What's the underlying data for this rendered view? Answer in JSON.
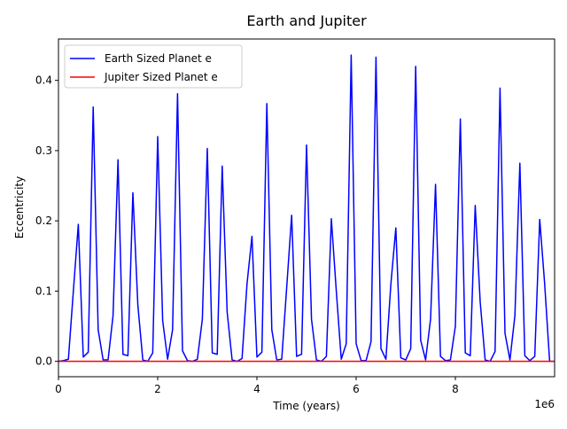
{
  "chart_data": {
    "type": "line",
    "title": "Earth and Jupiter",
    "xlabel": "Time (years)",
    "ylabel": "Eccentricity",
    "x_offset_label": "1e6",
    "xlim": [
      0,
      10000000
    ],
    "ylim": [
      -0.0219,
      0.4589
    ],
    "x_ticks": [
      {
        "value": 0,
        "label": "0"
      },
      {
        "value": 2000000,
        "label": "2"
      },
      {
        "value": 4000000,
        "label": "4"
      },
      {
        "value": 6000000,
        "label": "6"
      },
      {
        "value": 8000000,
        "label": "8"
      }
    ],
    "y_ticks": [
      {
        "value": 0,
        "label": "0.0"
      },
      {
        "value": 0.1,
        "label": "0.1"
      },
      {
        "value": 0.2,
        "label": "0.2"
      },
      {
        "value": 0.3,
        "label": "0.3"
      },
      {
        "value": 0.4,
        "label": "0.4"
      }
    ],
    "grid": false,
    "legend_position": "upper-left",
    "series": [
      {
        "name": "Earth Sized Planet e",
        "color": "#0000ff",
        "x": [
          0,
          100000,
          200000,
          300000,
          400000,
          500000,
          600000,
          700000,
          800000,
          900000,
          1000000,
          1100000,
          1200000,
          1300000,
          1400000,
          1500000,
          1600000,
          1700000,
          1800000,
          1900000,
          2000000,
          2100000,
          2200000,
          2300000,
          2400000,
          2500000,
          2600000,
          2700000,
          2800000,
          2900000,
          3000000,
          3100000,
          3200000,
          3300000,
          3400000,
          3500000,
          3600000,
          3700000,
          3800000,
          3900000,
          4000000,
          4100000,
          4200000,
          4300000,
          4400000,
          4500000,
          4600000,
          4700000,
          4800000,
          4900000,
          5000000,
          5100000,
          5200000,
          5300000,
          5400000,
          5500000,
          5600000,
          5700000,
          5800000,
          5900000,
          6000000,
          6100000,
          6200000,
          6300000,
          6400000,
          6500000,
          6600000,
          6700000,
          6800000,
          6900000,
          7000000,
          7100000,
          7200000,
          7300000,
          7400000,
          7500000,
          7600000,
          7700000,
          7800000,
          7900000,
          8000000,
          8100000,
          8200000,
          8300000,
          8400000,
          8500000,
          8600000,
          8700000,
          8800000,
          8900000,
          9000000,
          9100000,
          9200000,
          9300000,
          9400000,
          9500000,
          9600000,
          9700000,
          9800000,
          9900000,
          10000000
        ],
        "values": [
          0.0,
          0.001,
          0.003,
          0.1,
          0.195,
          0.006,
          0.013,
          0.362,
          0.045,
          0.002,
          0.002,
          0.065,
          0.287,
          0.01,
          0.008,
          0.24,
          0.08,
          0.002,
          0.0,
          0.012,
          0.32,
          0.058,
          0.003,
          0.045,
          0.381,
          0.015,
          0.001,
          0.0,
          0.003,
          0.06,
          0.303,
          0.012,
          0.01,
          0.278,
          0.07,
          0.002,
          0.0,
          0.004,
          0.11,
          0.178,
          0.006,
          0.013,
          0.367,
          0.045,
          0.002,
          0.003,
          0.105,
          0.208,
          0.007,
          0.01,
          0.308,
          0.06,
          0.002,
          0.0,
          0.007,
          0.203,
          0.1,
          0.003,
          0.025,
          0.436,
          0.025,
          0.001,
          0.001,
          0.028,
          0.433,
          0.018,
          0.003,
          0.11,
          0.19,
          0.005,
          0.002,
          0.018,
          0.42,
          0.03,
          0.002,
          0.06,
          0.252,
          0.007,
          0.001,
          0.002,
          0.05,
          0.345,
          0.012,
          0.008,
          0.222,
          0.085,
          0.002,
          0.0,
          0.014,
          0.389,
          0.04,
          0.002,
          0.065,
          0.282,
          0.008,
          0.001,
          0.007,
          0.202,
          0.11,
          0.0,
          0.0
        ]
      },
      {
        "name": "Jupiter Sized Planet e",
        "color": "#ff0000",
        "x": [
          0,
          10000000
        ],
        "values": [
          0.0,
          0.0
        ]
      }
    ]
  }
}
